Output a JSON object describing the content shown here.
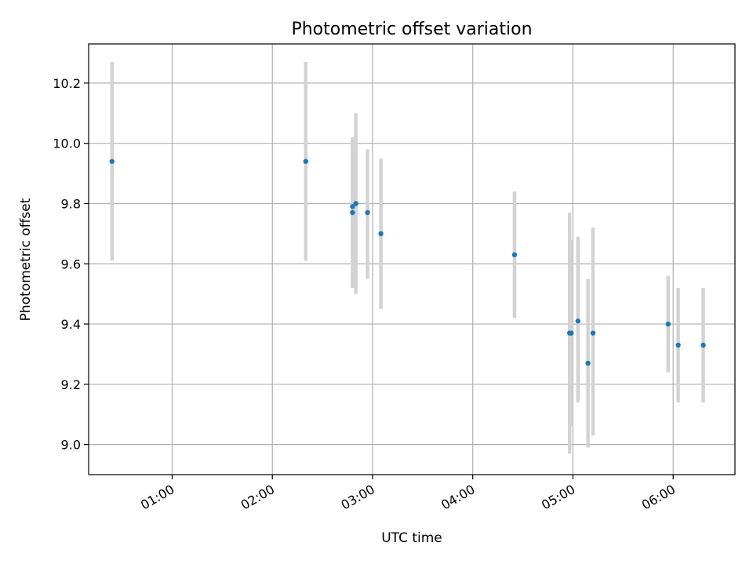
{
  "chart_data": {
    "type": "scatter",
    "title": "Photometric offset variation",
    "xlabel": "UTC time",
    "ylabel": "Photometric offset",
    "x_axis": {
      "type": "time",
      "unit": "hours UTC",
      "ticks": [
        {
          "value": 1,
          "label": "01:00"
        },
        {
          "value": 2,
          "label": "02:00"
        },
        {
          "value": 3,
          "label": "03:00"
        },
        {
          "value": 4,
          "label": "04:00"
        },
        {
          "value": 5,
          "label": "05:00"
        },
        {
          "value": 6,
          "label": "06:00"
        }
      ],
      "range": [
        "00:10",
        "06:37"
      ]
    },
    "y_axis": {
      "range": [
        8.9,
        10.33
      ],
      "ticks": [
        {
          "value": 9.0,
          "label": "9.0"
        },
        {
          "value": 9.2,
          "label": "9.2"
        },
        {
          "value": 9.4,
          "label": "9.4"
        },
        {
          "value": 9.6,
          "label": "9.6"
        },
        {
          "value": 9.8,
          "label": "9.8"
        },
        {
          "value": 10.0,
          "label": "10.0"
        },
        {
          "value": 10.2,
          "label": "10.2"
        }
      ]
    },
    "grid": true,
    "colors": {
      "points": "#1f77b4",
      "errorbars": "#d3d3d3",
      "grid": "#b0b0b0",
      "axes": "#000000"
    },
    "points": [
      {
        "x": "00:24",
        "y": 9.94,
        "low": 9.61,
        "high": 10.27
      },
      {
        "x": "02:20",
        "y": 9.94,
        "low": 9.61,
        "high": 10.27
      },
      {
        "x": "02:48",
        "y": 9.77,
        "low": 9.52,
        "high": 10.02
      },
      {
        "x": "02:48",
        "y": 9.79,
        "low": 9.55,
        "high": 10.01
      },
      {
        "x": "02:50",
        "y": 9.8,
        "low": 9.5,
        "high": 10.1
      },
      {
        "x": "02:57",
        "y": 9.77,
        "low": 9.55,
        "high": 9.98
      },
      {
        "x": "03:05",
        "y": 9.7,
        "low": 9.45,
        "high": 9.95
      },
      {
        "x": "04:25",
        "y": 9.63,
        "low": 9.42,
        "high": 9.84
      },
      {
        "x": "04:58",
        "y": 9.37,
        "low": 8.97,
        "high": 9.77
      },
      {
        "x": "04:59",
        "y": 9.37,
        "low": 9.06,
        "high": 9.68
      },
      {
        "x": "05:03",
        "y": 9.41,
        "low": 9.14,
        "high": 9.69
      },
      {
        "x": "05:09",
        "y": 9.27,
        "low": 8.99,
        "high": 9.55
      },
      {
        "x": "05:12",
        "y": 9.37,
        "low": 9.03,
        "high": 9.72
      },
      {
        "x": "05:57",
        "y": 9.4,
        "low": 9.24,
        "high": 9.56
      },
      {
        "x": "06:03",
        "y": 9.33,
        "low": 9.14,
        "high": 9.52
      },
      {
        "x": "06:18",
        "y": 9.33,
        "low": 9.14,
        "high": 9.52
      }
    ]
  }
}
